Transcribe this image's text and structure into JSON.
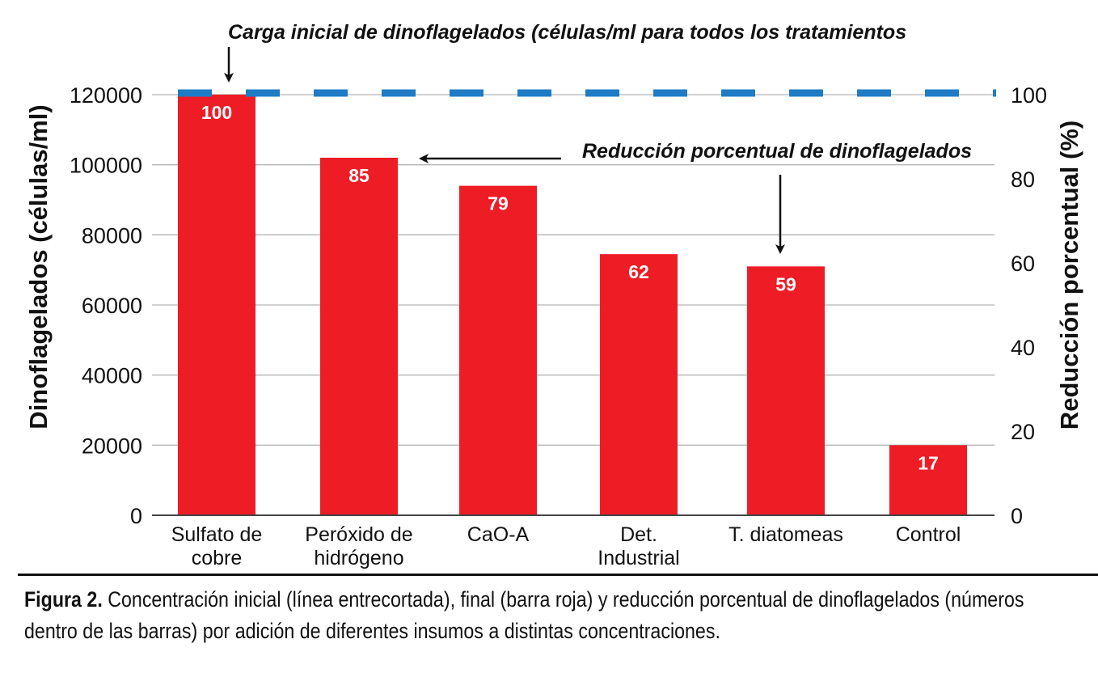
{
  "chart_data": {
    "type": "bar",
    "title": "",
    "categories": [
      [
        "Sulfato de",
        "cobre"
      ],
      [
        "Peróxido de",
        "hidrógeno"
      ],
      [
        "CaO-A"
      ],
      [
        "Det.",
        "Industrial"
      ],
      [
        "T. diatomeas"
      ],
      [
        "Control"
      ]
    ],
    "series": [
      {
        "values": [
          120000,
          102000,
          94000,
          74500,
          71000,
          20000
        ]
      }
    ],
    "data_labels": [
      "100",
      "85",
      "79",
      "62",
      "59",
      "17"
    ],
    "reference_line": {
      "value": 120000,
      "style": "dashed",
      "color": "#1f7cc4"
    },
    "ylabel": "Dinoflagelados (células/ml)",
    "y2label": "Reducción porcentual (%)",
    "ylim": [
      0,
      120000
    ],
    "y2lim": [
      0,
      100
    ],
    "yticks": [
      "0",
      "20000",
      "40000",
      "60000",
      "80000",
      "100000",
      "120000"
    ],
    "y2ticks": [
      "0",
      "20",
      "40",
      "60",
      "80",
      "100"
    ],
    "grid": true,
    "bar_color": "#ee1c25",
    "annotations": [
      "Carga inicial de dinoflagelados (células/ml para todos los tratamientos",
      "Reducción porcentual de dinoflagelados"
    ]
  },
  "caption": {
    "label": "Figura 2.",
    "text": " Concentración inicial (línea entrecortada), final (barra roja) y reducción porcentual de dinoflagelados (números dentro de las barras) por adición de diferentes insumos a distintas concentraciones."
  }
}
